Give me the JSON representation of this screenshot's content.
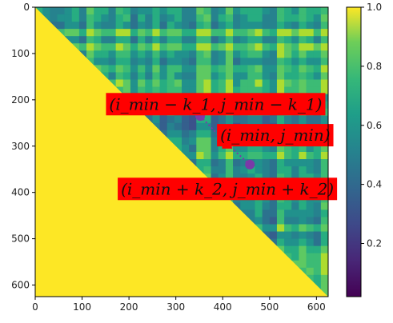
{
  "chart_data": {
    "type": "heatmap",
    "title": "",
    "xlabel": "",
    "ylabel": "",
    "matrix_size": 625,
    "xlim": [
      0,
      625
    ],
    "ylim": [
      625,
      0
    ],
    "lower_triangle_value": 1.0,
    "x_ticks": [
      0,
      100,
      200,
      300,
      400,
      500,
      600
    ],
    "y_ticks": [
      0,
      100,
      200,
      300,
      400,
      500,
      600
    ],
    "colormap": "viridis",
    "colorbar": {
      "range": [
        0.02,
        1.0
      ],
      "ticks": [
        0.2,
        0.4,
        0.6,
        0.8,
        1.0
      ],
      "tick_labels": [
        "0.2",
        "0.4",
        "0.6",
        "0.8",
        "1.0"
      ]
    },
    "colors": {
      "annotation_box": "#ff0000",
      "marker_min": "#ff0000",
      "marker_k": "#7a3aa8",
      "triangle_fill": "#fde725"
    },
    "points": [
      {
        "name": "i_min - k1",
        "x": 352,
        "y": 235
      },
      {
        "name": "i_min",
        "x": 409,
        "y": 295
      },
      {
        "name": "i_min + k2",
        "x": 458,
        "y": 340
      }
    ],
    "annotations": [
      {
        "text": "(i_min − k_1, j_min − k_1)",
        "x": 385,
        "y": 212
      },
      {
        "text": "(i_min, j_min)",
        "x": 512,
        "y": 279
      },
      {
        "text": "(i_min + k_2, j_min + k_2)",
        "x": 410,
        "y": 395
      }
    ]
  }
}
